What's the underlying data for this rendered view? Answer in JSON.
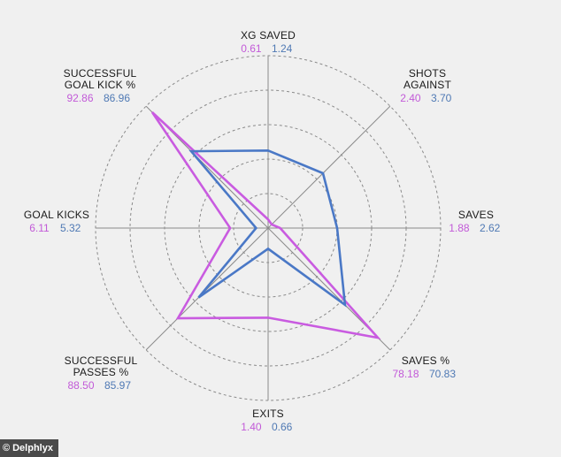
{
  "watermark": {
    "text": "Delphlyx",
    "icon": "copyright-icon",
    "glyph": "©"
  },
  "colors": {
    "series1": "#c95be0",
    "series2": "#4a78c6",
    "grid": "#8a8a8a",
    "axis": "#8a8a8a"
  },
  "chart_data": {
    "type": "radar",
    "grid": true,
    "axes": [
      {
        "label_lines": [
          "XG SAVED"
        ],
        "v1": "0.61",
        "v2": "1.24"
      },
      {
        "label_lines": [
          "SHOTS",
          "AGAINST"
        ],
        "v1": "2.40",
        "v2": "3.70"
      },
      {
        "label_lines": [
          "SAVES"
        ],
        "v1": "1.88",
        "v2": "2.62"
      },
      {
        "label_lines": [
          "SAVES %"
        ],
        "v1": "78.18",
        "v2": "70.83"
      },
      {
        "label_lines": [
          "EXITS"
        ],
        "v1": "1.40",
        "v2": "0.66"
      },
      {
        "label_lines": [
          "SUCCESSFUL",
          "PASSES %"
        ],
        "v1": "88.50",
        "v2": "85.97"
      },
      {
        "label_lines": [
          "GOAL KICKS"
        ],
        "v1": "6.11",
        "v2": "5.32"
      },
      {
        "label_lines": [
          "SUCCESSFUL",
          "GOAL KICK %"
        ],
        "v1": "92.86",
        "v2": "86.96"
      }
    ],
    "series": [
      {
        "values": [
          0.61,
          2.4,
          1.88,
          78.18,
          1.4,
          88.5,
          6.11,
          92.86
        ],
        "relative": [
          0.05,
          0.03,
          0.07,
          0.9,
          0.52,
          0.74,
          0.22,
          0.95
        ]
      },
      {
        "values": [
          1.24,
          3.7,
          2.62,
          70.83,
          0.66,
          85.97,
          5.32,
          86.96
        ],
        "relative": [
          0.45,
          0.45,
          0.4,
          0.63,
          0.12,
          0.57,
          0.07,
          0.63
        ]
      }
    ],
    "rings": 5
  }
}
